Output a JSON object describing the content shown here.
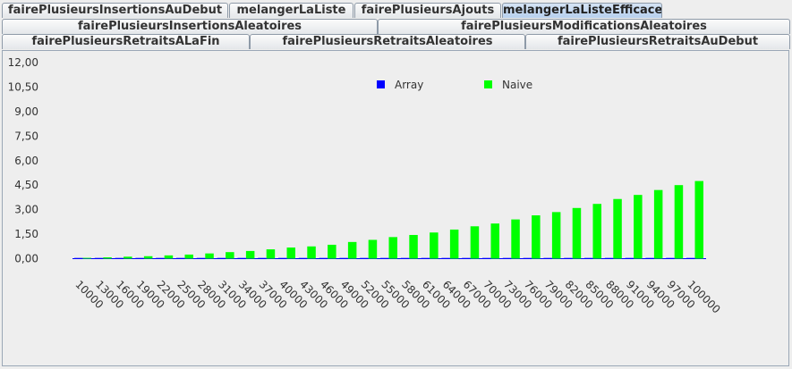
{
  "tabs": {
    "row1": [
      {
        "label": "fairePlusieursInsertionsAuDebut",
        "selected": false
      },
      {
        "label": "melangerLaListe",
        "selected": false
      },
      {
        "label": "fairePlusieursAjouts",
        "selected": false
      },
      {
        "label": "melangerLaListeEfficace",
        "selected": true
      }
    ],
    "row2": [
      {
        "label": "fairePlusieursInsertionsAleatoires",
        "selected": false
      },
      {
        "label": "fairePlusieursModificationsAleatoires",
        "selected": false
      }
    ],
    "row3": [
      {
        "label": "fairePlusieursRetraitsALaFin",
        "selected": false
      },
      {
        "label": "fairePlusieursRetraitsAleatoires",
        "selected": false
      },
      {
        "label": "fairePlusieursRetraitsAuDebut",
        "selected": false
      }
    ]
  },
  "colors": {
    "array": "#0000ff",
    "naive": "#00ff00",
    "selected_tab": "#b8d0ee"
  },
  "chart_data": {
    "type": "bar",
    "categories": [
      "10000",
      "13000",
      "16000",
      "19000",
      "22000",
      "25000",
      "28000",
      "31000",
      "34000",
      "37000",
      "40000",
      "43000",
      "46000",
      "49000",
      "52000",
      "55000",
      "58000",
      "61000",
      "64000",
      "67000",
      "70000",
      "73000",
      "76000",
      "79000",
      "82000",
      "85000",
      "88000",
      "91000",
      "94000",
      "97000",
      "100000"
    ],
    "series": [
      {
        "name": "Array",
        "values": [
          0.0,
          0.0,
          0.0,
          0.0,
          0.0,
          0.0,
          0.0,
          0.0,
          0.0,
          0.0,
          0.0,
          0.0,
          0.0,
          0.0,
          0.0,
          0.0,
          0.0,
          0.0,
          0.0,
          0.0,
          0.0,
          0.0,
          0.0,
          0.0,
          0.0,
          0.0,
          0.0,
          0.0,
          0.0,
          0.0,
          0.0
        ]
      },
      {
        "name": "Naive",
        "values": [
          0.05,
          0.08,
          0.12,
          0.15,
          0.2,
          0.25,
          0.32,
          0.4,
          0.47,
          0.57,
          0.68,
          0.75,
          0.85,
          1.02,
          1.15,
          1.32,
          1.45,
          1.6,
          1.78,
          1.98,
          2.15,
          2.4,
          2.65,
          2.85,
          3.1,
          3.35,
          3.65,
          3.9,
          4.2,
          4.5,
          4.75
        ]
      }
    ],
    "yticks": [
      "0,00",
      "1,50",
      "3,00",
      "4,50",
      "6,00",
      "7,50",
      "9,00",
      "10,50",
      "12,00"
    ],
    "ylim": [
      0,
      12
    ],
    "legend": "top-center",
    "grid": false
  }
}
